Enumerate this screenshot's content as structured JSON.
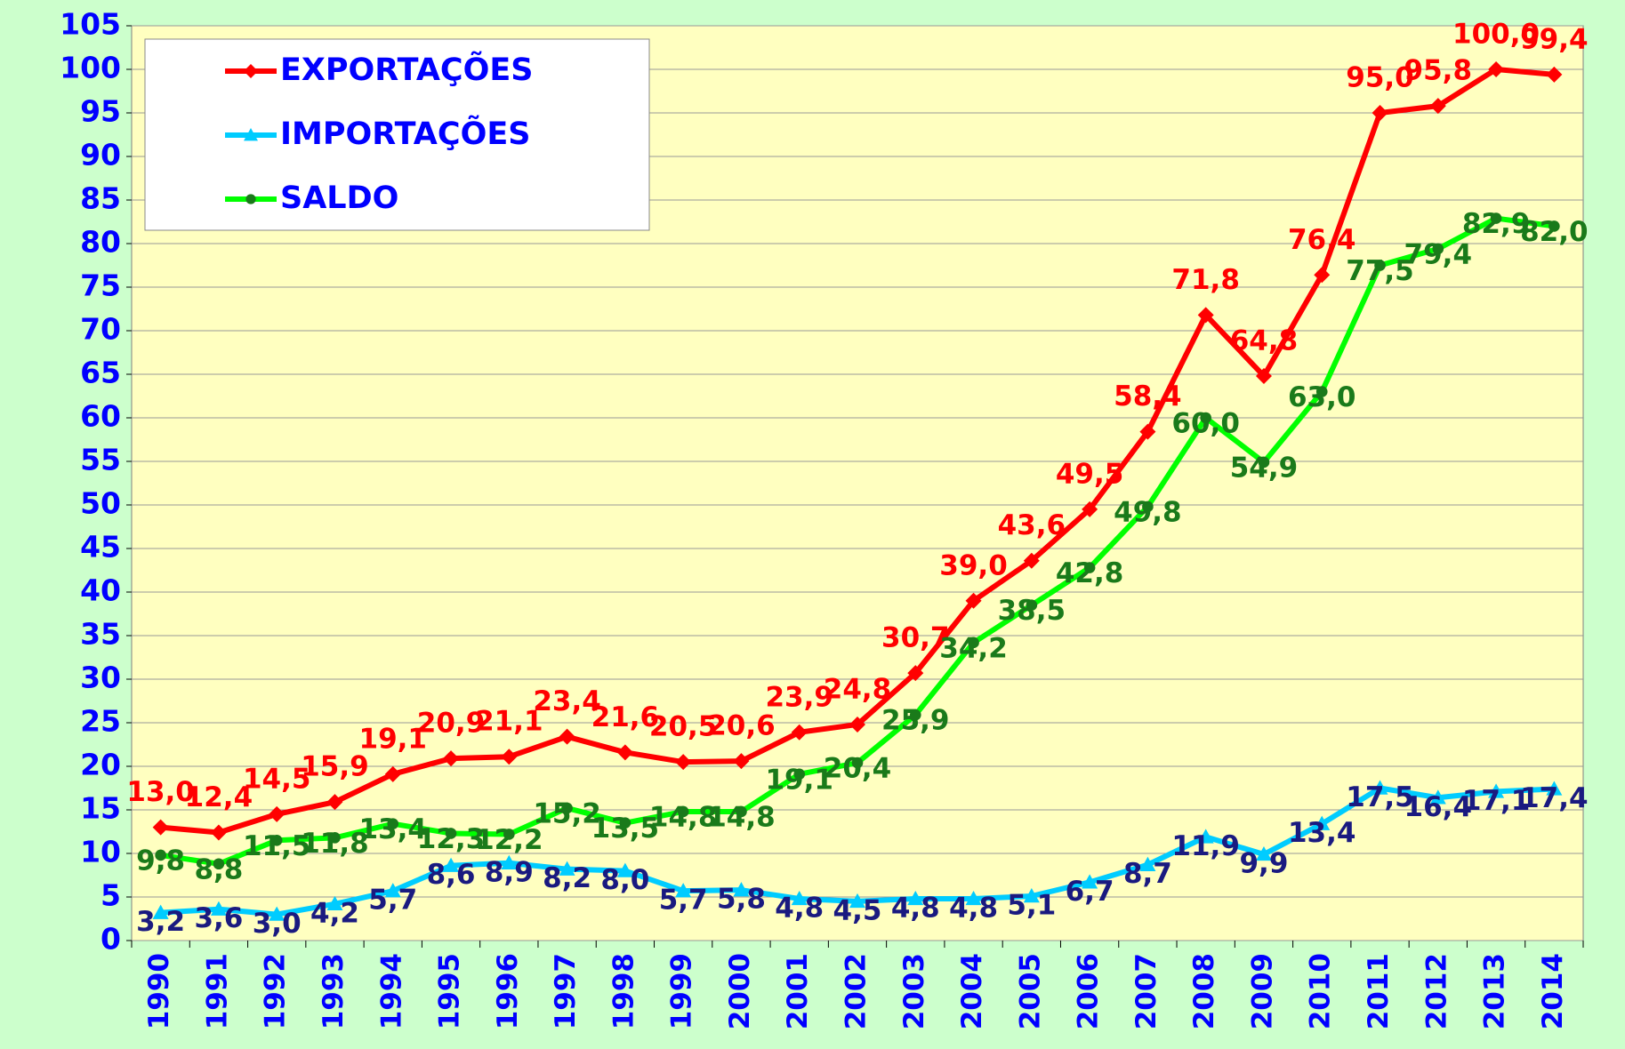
{
  "chart_data": {
    "type": "line",
    "categories": [
      "1990",
      "1991",
      "1992",
      "1993",
      "1994",
      "1995",
      "1996",
      "1997",
      "1998",
      "1999",
      "2000",
      "2001",
      "2002",
      "2003",
      "2004",
      "2005",
      "2006",
      "2007",
      "2008",
      "2009",
      "2010",
      "2011",
      "2012",
      "2013",
      "2014"
    ],
    "series": [
      {
        "name": "EXPORTAÇÕES",
        "color": "#ff0000",
        "label_color": "#ff0000",
        "marker": "diamond",
        "values": [
          13.0,
          12.4,
          14.5,
          15.9,
          19.1,
          20.9,
          21.1,
          23.4,
          21.6,
          20.5,
          20.6,
          23.9,
          24.8,
          30.7,
          39.0,
          43.6,
          49.5,
          58.4,
          71.8,
          64.8,
          76.4,
          95.0,
          95.8,
          100.0,
          99.4
        ],
        "value_labels": [
          "13,0",
          "12,4",
          "14,5",
          "15,9",
          "19,1",
          "20,9",
          "21,1",
          "23,4",
          "21,6",
          "20,5",
          "20,6",
          "23,9",
          "24,8",
          "30,7",
          "39,0",
          "43,6",
          "49,5",
          "58,4",
          "71,8",
          "64,8",
          "76,4",
          "95,0",
          "95,8",
          "100,0",
          "99,4"
        ]
      },
      {
        "name": "IMPORTAÇÕES",
        "color": "#00ccff",
        "label_color": "#1a1a80",
        "marker": "triangle",
        "values": [
          3.2,
          3.6,
          3.0,
          4.2,
          5.7,
          8.6,
          8.9,
          8.2,
          8.0,
          5.7,
          5.8,
          4.8,
          4.5,
          4.8,
          4.8,
          5.1,
          6.7,
          8.7,
          11.9,
          9.9,
          13.4,
          17.5,
          16.4,
          17.1,
          17.4
        ],
        "value_labels": [
          "3,2",
          "3,6",
          "3,0",
          "4,2",
          "5,7",
          "8,6",
          "8,9",
          "8,2",
          "8,0",
          "5,7",
          "5,8",
          "4,8",
          "4,5",
          "4,8",
          "4,8",
          "5,1",
          "6,7",
          "8,7",
          "11,9",
          "9,9",
          "13,4",
          "17,5",
          "16,4",
          "17,1",
          "17,4"
        ]
      },
      {
        "name": "SALDO",
        "color": "#00ff00",
        "label_color": "#1a7a1a",
        "marker": "circle",
        "values": [
          9.8,
          8.8,
          11.5,
          11.8,
          13.4,
          12.3,
          12.2,
          15.2,
          13.5,
          14.8,
          14.8,
          19.1,
          20.4,
          25.9,
          34.2,
          38.5,
          42.8,
          49.8,
          60.0,
          54.9,
          63.0,
          77.5,
          79.4,
          82.9,
          82.0
        ],
        "value_labels": [
          "9,8",
          "8,8",
          "11,5",
          "11,8",
          "13,4",
          "12,3",
          "12,2",
          "15,2",
          "13,5",
          "14,8",
          "14,8",
          "19,1",
          "20,4",
          "25,9",
          "34,2",
          "38,5",
          "42,8",
          "49,8",
          "60,0",
          "54,9",
          "63,0",
          "77,5",
          "79,4",
          "82,9",
          "82,0"
        ]
      }
    ],
    "ylim": [
      0,
      105
    ],
    "yticks": [
      0,
      5,
      10,
      15,
      20,
      25,
      30,
      35,
      40,
      45,
      50,
      55,
      60,
      65,
      70,
      75,
      80,
      85,
      90,
      95,
      100,
      105
    ],
    "grid": true,
    "legend": "upper left"
  }
}
